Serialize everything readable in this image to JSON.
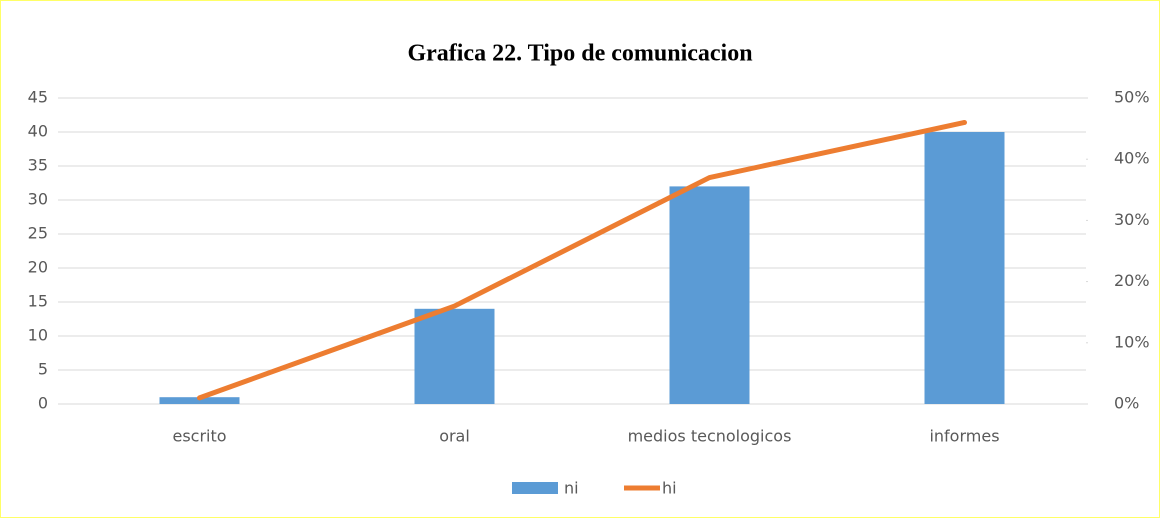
{
  "chart_data": {
    "type": "bar",
    "title": "Grafica 22. Tipo de comunicacion",
    "categories": [
      "escrito",
      "oral",
      "medios tecnologicos",
      "informes"
    ],
    "series": [
      {
        "name": "ni",
        "type": "bar",
        "color": "#5b9bd5",
        "values": [
          1,
          14,
          32,
          40
        ]
      },
      {
        "name": "hi",
        "type": "line",
        "axis": "y2",
        "color": "#ed7d31",
        "values": [
          1,
          16,
          37,
          46
        ]
      }
    ],
    "ylim": [
      0,
      45
    ],
    "yticks": [
      0,
      5,
      10,
      15,
      20,
      25,
      30,
      35,
      40,
      45
    ],
    "y2lim": [
      0,
      50
    ],
    "y2ticks": [
      {
        "value": 0,
        "label": "0%"
      },
      {
        "value": 10,
        "label": "10%"
      },
      {
        "value": 20,
        "label": "20%"
      },
      {
        "value": 30,
        "label": "30%"
      },
      {
        "value": 40,
        "label": "40%"
      },
      {
        "value": 50,
        "label": "50%"
      }
    ],
    "grid": true,
    "legend": "bottom"
  }
}
